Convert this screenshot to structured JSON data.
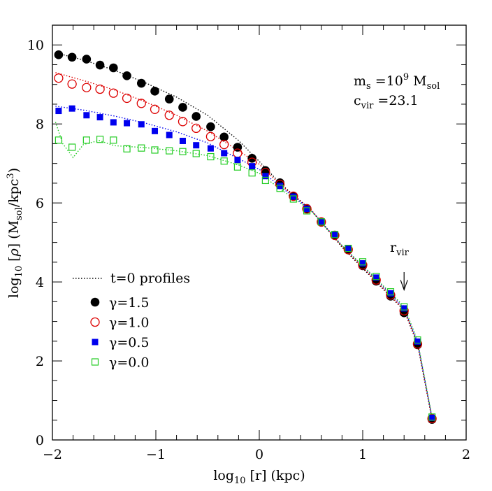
{
  "chart_data": {
    "type": "scatter",
    "title": "",
    "xlabel": "log10 [r] (kpc)",
    "ylabel": "log10 [ρ]  (Msol/kpc³)",
    "xlim": [
      -2,
      2
    ],
    "ylim": [
      0,
      10.5
    ],
    "x_ticks": [
      "−2",
      "−1",
      "0",
      "1",
      "2"
    ],
    "y_ticks": [
      "0",
      "2",
      "4",
      "6",
      "8",
      "10"
    ],
    "annotations": {
      "ms_line": "m_s =10⁹ M_sol",
      "cvir_line": "c_vir =23.1",
      "rvir_label": "r_vir",
      "rvir_x": 1.4,
      "rvir_arrow_from": 4.25,
      "rvir_arrow_to": 3.8
    },
    "legend": {
      "placement": "lower-left",
      "t0_label": "t=0 profiles",
      "entries": [
        "γ=1.5",
        "γ=1.0",
        "γ=0.5",
        "γ=0.0"
      ]
    },
    "series": [
      {
        "name": "γ=1.5",
        "marker": "filled-circle",
        "color": "#000000",
        "x": [
          -1.94,
          -1.81,
          -1.67,
          -1.54,
          -1.41,
          -1.28,
          -1.14,
          -1.01,
          -0.87,
          -0.74,
          -0.61,
          -0.47,
          -0.34,
          -0.21,
          -0.07,
          0.06,
          0.2,
          0.33,
          0.46,
          0.6,
          0.73,
          0.86,
          1.0,
          1.13,
          1.27,
          1.4,
          1.53,
          1.67
        ],
        "values": [
          9.75,
          9.69,
          9.64,
          9.49,
          9.42,
          9.22,
          9.03,
          8.83,
          8.63,
          8.42,
          8.19,
          7.93,
          7.67,
          7.41,
          7.13,
          6.82,
          6.51,
          6.17,
          5.86,
          5.51,
          5.18,
          4.81,
          4.41,
          4.02,
          3.64,
          3.22,
          2.41,
          0.52
        ]
      },
      {
        "name": "γ=1.0",
        "marker": "open-circle",
        "color": "#dd0000",
        "x": [
          -1.94,
          -1.81,
          -1.67,
          -1.54,
          -1.41,
          -1.28,
          -1.14,
          -1.01,
          -0.87,
          -0.74,
          -0.61,
          -0.47,
          -0.34,
          -0.21,
          -0.07,
          0.06,
          0.2,
          0.33,
          0.46,
          0.6,
          0.73,
          0.86,
          1.0,
          1.13,
          1.27,
          1.4,
          1.53,
          1.67
        ],
        "values": [
          9.16,
          9.01,
          8.92,
          8.88,
          8.78,
          8.65,
          8.52,
          8.37,
          8.22,
          8.06,
          7.89,
          7.68,
          7.48,
          7.26,
          7.03,
          6.77,
          6.47,
          6.17,
          5.85,
          5.52,
          5.18,
          4.82,
          4.43,
          4.05,
          3.67,
          3.27,
          2.43,
          0.54
        ]
      },
      {
        "name": "γ=0.5",
        "marker": "filled-square",
        "color": "#0000ee",
        "x": [
          -1.94,
          -1.81,
          -1.67,
          -1.54,
          -1.41,
          -1.28,
          -1.14,
          -1.01,
          -0.87,
          -0.74,
          -0.61,
          -0.47,
          -0.34,
          -0.21,
          -0.07,
          0.06,
          0.2,
          0.33,
          0.46,
          0.6,
          0.73,
          0.86,
          1.0,
          1.13,
          1.27,
          1.4,
          1.53,
          1.67
        ],
        "values": [
          8.33,
          8.39,
          8.22,
          8.17,
          8.04,
          8.02,
          7.99,
          7.82,
          7.72,
          7.57,
          7.46,
          7.38,
          7.26,
          7.09,
          6.93,
          6.68,
          6.43,
          6.16,
          5.85,
          5.53,
          5.19,
          4.84,
          4.47,
          4.11,
          3.71,
          3.33,
          2.49,
          0.56
        ]
      },
      {
        "name": "γ=0.0",
        "marker": "open-square",
        "color": "#22cc22",
        "x": [
          -1.94,
          -1.81,
          -1.67,
          -1.54,
          -1.41,
          -1.28,
          -1.14,
          -1.01,
          -0.87,
          -0.74,
          -0.61,
          -0.47,
          -0.34,
          -0.21,
          -0.07,
          0.06,
          0.2,
          0.33,
          0.46,
          0.6,
          0.73,
          0.86,
          1.0,
          1.13,
          1.27,
          1.4,
          1.53,
          1.67
        ],
        "values": [
          7.59,
          7.41,
          7.59,
          7.61,
          7.59,
          7.37,
          7.39,
          7.34,
          7.32,
          7.3,
          7.25,
          7.17,
          7.06,
          6.91,
          6.76,
          6.57,
          6.37,
          6.1,
          5.8,
          5.52,
          5.2,
          4.85,
          4.51,
          4.14,
          3.75,
          3.37,
          2.53,
          0.58
        ]
      }
    ],
    "t0_profiles": [
      {
        "name": "γ=1.5 t=0",
        "color": "#000000",
        "x": [
          -1.97,
          -1.7,
          -1.4,
          -1.1,
          -0.8,
          -0.5,
          -0.2,
          0.0,
          0.2,
          0.5,
          0.8,
          1.1,
          1.4,
          1.53,
          1.67
        ],
        "values": [
          9.8,
          9.62,
          9.36,
          9.04,
          8.68,
          8.22,
          7.58,
          7.05,
          6.5,
          5.82,
          4.88,
          4.08,
          3.28,
          2.42,
          0.52
        ]
      },
      {
        "name": "γ=1.0 t=0",
        "color": "#dd0000",
        "x": [
          -1.97,
          -1.7,
          -1.4,
          -1.1,
          -0.8,
          -0.5,
          -0.2,
          0.0,
          0.2,
          0.5,
          0.8,
          1.1,
          1.4,
          1.53,
          1.67
        ],
        "values": [
          9.3,
          9.1,
          8.86,
          8.56,
          8.22,
          7.82,
          7.32,
          6.98,
          6.47,
          5.83,
          4.9,
          4.1,
          3.3,
          2.45,
          0.54
        ]
      },
      {
        "name": "γ=0.5 t=0",
        "color": "#0000ee",
        "x": [
          -1.97,
          -1.7,
          -1.4,
          -1.1,
          -0.8,
          -0.5,
          -0.2,
          0.0,
          0.2,
          0.5,
          0.8,
          1.1,
          1.4,
          1.53,
          1.67
        ],
        "values": [
          8.45,
          8.35,
          8.2,
          8.02,
          7.8,
          7.52,
          7.12,
          6.85,
          6.42,
          5.82,
          4.92,
          4.14,
          3.34,
          2.48,
          0.56
        ]
      },
      {
        "name": "γ=0.0 t=0",
        "color": "#22cc22",
        "x": [
          -1.97,
          -1.9,
          -1.8,
          -1.7,
          -1.55,
          -1.4,
          -1.1,
          -0.8,
          -0.5,
          -0.2,
          0.0,
          0.2,
          0.5,
          0.8,
          1.1,
          1.4,
          1.53,
          1.67
        ],
        "values": [
          8.05,
          7.5,
          7.15,
          7.48,
          7.58,
          7.45,
          7.4,
          7.32,
          7.2,
          6.96,
          6.75,
          6.36,
          5.8,
          4.92,
          4.16,
          3.38,
          2.52,
          0.58
        ]
      }
    ]
  }
}
